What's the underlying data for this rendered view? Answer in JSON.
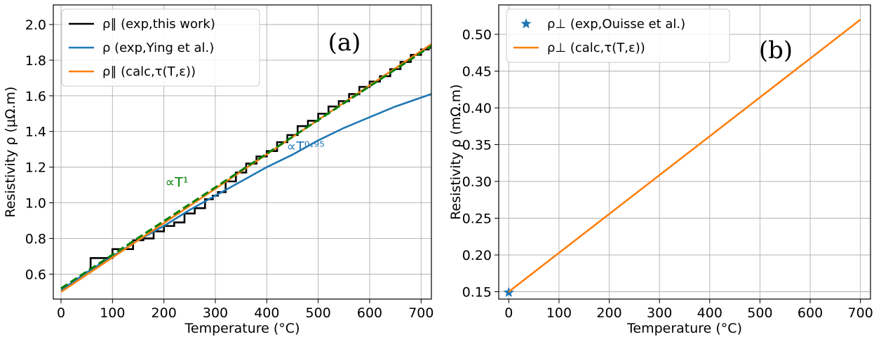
{
  "chart_data": [
    {
      "type": "line",
      "panel_label": "(a)",
      "xlabel": "Temperature (°C)",
      "ylabel": "Resistivity ρ (μΩ.m)",
      "xlim": [
        -15,
        720
      ],
      "ylim": [
        0.46,
        2.11
      ],
      "x_ticks": [
        0,
        100,
        200,
        300,
        400,
        500,
        600,
        700
      ],
      "y_ticks": [
        0.6,
        0.8,
        1.0,
        1.2,
        1.4,
        1.6,
        1.8,
        2.0
      ],
      "x_tick_labels": [
        "0",
        "100",
        "200",
        "300",
        "400",
        "500",
        "600",
        "700"
      ],
      "y_tick_labels": [
        "0.6",
        "0.8",
        "1.0",
        "1.2",
        "1.4",
        "1.6",
        "1.8",
        "2.0"
      ],
      "grid": true,
      "legend_position": "top-left",
      "series": [
        {
          "name": "ρ∥ (exp,this work)",
          "color": "#000000",
          "style": "solid",
          "x": [
            55,
            60,
            70,
            90,
            110,
            130,
            150,
            170,
            190,
            210,
            230,
            250,
            270,
            290,
            300,
            310,
            330,
            350,
            370,
            390,
            410,
            430,
            450,
            470,
            490,
            510,
            530,
            550,
            570,
            590,
            610,
            630,
            650,
            670,
            690,
            710,
            720
          ],
          "y": [
            0.63,
            0.69,
            0.69,
            0.69,
            0.74,
            0.74,
            0.79,
            0.8,
            0.84,
            0.87,
            0.89,
            0.94,
            0.97,
            1.02,
            1.04,
            1.06,
            1.12,
            1.17,
            1.22,
            1.26,
            1.29,
            1.34,
            1.38,
            1.43,
            1.46,
            1.5,
            1.54,
            1.57,
            1.61,
            1.65,
            1.68,
            1.71,
            1.75,
            1.79,
            1.83,
            1.86,
            1.87
          ]
        },
        {
          "name": "ρ (exp,Ying et al.)",
          "color": "#1f77b4",
          "style": "solid",
          "x": [
            0,
            50,
            100,
            150,
            200,
            250,
            300,
            350,
            400,
            450,
            500,
            550,
            600,
            650,
            700,
            720
          ],
          "y": [
            0.51,
            0.61,
            0.7,
            0.79,
            0.87,
            0.96,
            1.04,
            1.12,
            1.2,
            1.27,
            1.35,
            1.42,
            1.48,
            1.54,
            1.59,
            1.61
          ]
        },
        {
          "name": "ρ∥ (calc,τ(T,ε))",
          "color": "#ff7f0e",
          "style": "solid",
          "x": [
            0,
            720
          ],
          "y": [
            0.5,
            1.89
          ]
        },
        {
          "color": "#008000",
          "style": "dashed",
          "x": [
            0,
            720
          ],
          "y": [
            0.52,
            1.88
          ]
        }
      ],
      "annotations": [
        {
          "text": "∝T¹",
          "color": "#008000",
          "x": 230,
          "y": 1.09
        },
        {
          "text": "∝T⁰·⁹⁵",
          "color": "#1f77b4",
          "x": 500,
          "y": 1.29
        }
      ]
    },
    {
      "type": "line",
      "panel_label": "(b)",
      "xlabel": "Temperature (°C)",
      "ylabel": "Resistivity ρ (mΩ.m)",
      "xlim": [
        -20,
        720
      ],
      "ylim": [
        0.14,
        0.54
      ],
      "x_ticks": [
        0,
        100,
        200,
        300,
        400,
        500,
        600,
        700
      ],
      "y_ticks": [
        0.15,
        0.2,
        0.25,
        0.3,
        0.35,
        0.4,
        0.45,
        0.5
      ],
      "x_tick_labels": [
        "0",
        "100",
        "200",
        "300",
        "400",
        "500",
        "600",
        "700"
      ],
      "y_tick_labels": [
        "0.15",
        "0.20",
        "0.25",
        "0.30",
        "0.35",
        "0.40",
        "0.45",
        "0.50"
      ],
      "grid": true,
      "legend_position": "top-left",
      "series": [
        {
          "name": "ρ⊥ (exp,Ouisse et al.)",
          "color": "#1f77b4",
          "style": "marker-star",
          "x": [
            0
          ],
          "y": [
            0.149
          ]
        },
        {
          "name": "ρ⊥ (calc,τ(T,ε))",
          "color": "#ff7f0e",
          "style": "solid",
          "x": [
            0,
            700
          ],
          "y": [
            0.15,
            0.52
          ]
        }
      ]
    }
  ]
}
